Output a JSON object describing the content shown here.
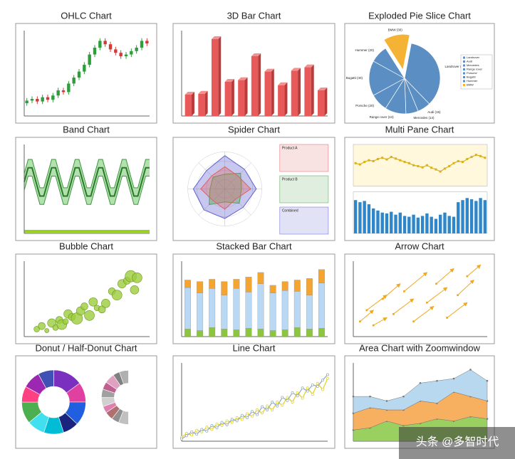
{
  "chart_data": [
    {
      "type": "ohlc",
      "title": "OHLC Chart",
      "up_color": "#2e9e3a",
      "down_color": "#d23a3a",
      "ylim": [
        0,
        100
      ],
      "open": [
        15,
        18,
        20,
        17,
        22,
        19,
        24,
        30,
        28,
        38,
        45,
        52,
        60,
        72,
        80,
        88,
        84,
        78,
        74,
        70,
        72,
        76,
        80,
        88
      ],
      "high": [
        21,
        23,
        23,
        25,
        25,
        27,
        33,
        33,
        41,
        48,
        55,
        63,
        75,
        83,
        91,
        91,
        87,
        81,
        77,
        75,
        79,
        83,
        91,
        91
      ],
      "low": [
        12,
        15,
        14,
        14,
        16,
        16,
        21,
        25,
        25,
        35,
        42,
        49,
        57,
        69,
        77,
        81,
        75,
        71,
        67,
        67,
        69,
        73,
        77,
        82
      ],
      "close": [
        18,
        20,
        17,
        22,
        19,
        24,
        30,
        28,
        38,
        45,
        52,
        60,
        72,
        80,
        88,
        84,
        78,
        74,
        70,
        72,
        76,
        80,
        88,
        85
      ]
    },
    {
      "type": "bar3d",
      "title": "3D Bar Chart",
      "color": "#e8595a",
      "ylim": [
        0,
        100
      ],
      "values": [
        25,
        26,
        90,
        40,
        42,
        70,
        52,
        36,
        53,
        57,
        30
      ]
    },
    {
      "type": "pie",
      "title": "Exploded Pie Slice Chart",
      "explode": 7,
      "color": "#5b8ec2",
      "explode_color": "#f5b335",
      "categories": [
        "Landrover",
        "Audi",
        "Mercedes",
        "Range rover",
        "Porsche",
        "Bugatti",
        "Hummer",
        "BMW"
      ],
      "labels": [
        "Landrover (87)",
        "Audi (15)",
        "Mercedes (14)",
        "Range rover (24)",
        "Porsche (20)",
        "Bugatti (40)",
        "Hummer (20)",
        "BMW (30)"
      ],
      "values": [
        87,
        15,
        14,
        24,
        20,
        40,
        20,
        30
      ]
    },
    {
      "type": "band",
      "title": "Band Chart",
      "color": "#3c9a3c",
      "band_color": "#9fd89a",
      "ylim": [
        0,
        100
      ],
      "values": [
        55,
        72,
        72,
        55,
        38,
        38,
        55,
        72,
        72,
        55,
        38,
        38,
        55,
        72,
        72,
        55,
        38,
        38,
        55,
        72,
        72,
        55,
        38,
        38,
        55,
        72,
        72,
        55,
        38,
        38,
        55,
        72,
        72
      ],
      "upper": [
        65,
        82,
        82,
        65,
        48,
        48,
        65,
        82,
        82,
        65,
        48,
        48,
        65,
        82,
        82,
        65,
        48,
        48,
        65,
        82,
        82,
        65,
        48,
        48,
        65,
        82,
        82,
        65,
        48,
        48,
        65,
        82,
        82
      ],
      "lower": [
        45,
        62,
        62,
        45,
        28,
        28,
        45,
        62,
        62,
        45,
        28,
        28,
        45,
        62,
        62,
        45,
        28,
        28,
        45,
        62,
        62,
        45,
        28,
        28,
        45,
        62,
        62,
        45,
        28,
        28,
        45,
        62,
        62
      ]
    },
    {
      "type": "spider",
      "title": "Spider Chart",
      "rlim": [
        0,
        100
      ],
      "series": [
        {
          "name": "Product A",
          "color": "#e06060",
          "values": [
            60,
            50,
            70,
            40,
            55,
            45,
            65,
            50
          ]
        },
        {
          "name": "Product B",
          "color": "#50a050",
          "values": [
            40,
            60,
            45,
            55,
            35,
            60,
            40,
            45
          ]
        },
        {
          "name": "Combined",
          "color": "#6060d0",
          "values": [
            90,
            75,
            85,
            70,
            80,
            80,
            85,
            70
          ]
        }
      ]
    },
    {
      "type": "multipane",
      "title": "Multi Pane Chart",
      "line_color": "#d8b020",
      "bar_color": "#2f86c8",
      "ylim": [
        0,
        100
      ],
      "line_values": [
        55,
        52,
        58,
        62,
        60,
        65,
        68,
        64,
        70,
        66,
        62,
        58,
        55,
        50,
        48,
        45,
        50,
        44,
        40,
        35,
        42,
        48,
        55,
        60,
        58,
        65,
        70,
        75,
        72,
        68
      ],
      "bar_values": [
        80,
        75,
        78,
        70,
        60,
        55,
        50,
        48,
        52,
        45,
        50,
        42,
        40,
        45,
        38,
        42,
        48,
        40,
        35,
        45,
        50,
        42,
        40,
        75,
        80,
        85,
        82,
        78,
        85,
        80
      ]
    },
    {
      "type": "bubble",
      "title": "Bubble Chart",
      "color": "#9ccc3c",
      "xlim": [
        0,
        100
      ],
      "ylim": [
        0,
        100
      ],
      "x": [
        10,
        14,
        18,
        22,
        25,
        28,
        30,
        33,
        35,
        38,
        42,
        45,
        48,
        52,
        55,
        58,
        62,
        65,
        70,
        74,
        78,
        82,
        85,
        88,
        90
      ],
      "values": [
        10,
        14,
        8,
        18,
        12,
        22,
        16,
        20,
        30,
        26,
        24,
        34,
        40,
        28,
        46,
        38,
        36,
        44,
        60,
        55,
        70,
        74,
        80,
        62,
        78
      ],
      "sizes": [
        4,
        5,
        3,
        6,
        4,
        5,
        7,
        4,
        6,
        5,
        8,
        6,
        5,
        7,
        6,
        4,
        5,
        6,
        5,
        7,
        6,
        5,
        8,
        6,
        7
      ]
    },
    {
      "type": "stacked",
      "title": "Stacked Bar Chart",
      "ylim": [
        0,
        100
      ],
      "series": [
        {
          "color": "#8cc63e",
          "values": [
            10,
            8,
            12,
            10,
            9,
            11,
            10,
            8,
            9,
            12,
            10,
            11
          ]
        },
        {
          "color": "#b8d8f4",
          "values": [
            55,
            50,
            52,
            45,
            55,
            48,
            60,
            50,
            52,
            48,
            45,
            60
          ]
        },
        {
          "color": "#f4a531",
          "values": [
            10,
            15,
            12,
            18,
            12,
            20,
            15,
            10,
            12,
            15,
            22,
            18
          ]
        }
      ]
    },
    {
      "type": "arrow",
      "title": "Arrow Chart",
      "color": "#f0a820",
      "xlim": [
        0,
        100
      ],
      "ylim": [
        0,
        100
      ],
      "x": [
        5,
        10,
        15,
        22,
        30,
        38,
        45,
        55,
        62,
        70,
        78,
        85
      ],
      "values": [
        20,
        35,
        15,
        50,
        30,
        60,
        20,
        45,
        70,
        25,
        55,
        80
      ],
      "x_end": [
        15,
        25,
        25,
        35,
        45,
        55,
        60,
        70,
        75,
        85,
        90,
        95
      ],
      "y_end": [
        35,
        55,
        25,
        70,
        50,
        85,
        40,
        65,
        90,
        45,
        75,
        95
      ]
    },
    {
      "type": "donut",
      "title": "Donut / Half-Donut Chart",
      "series": [
        {
          "values": [
            15,
            10,
            12,
            8,
            10,
            9,
            11,
            8,
            9,
            8
          ],
          "colors": [
            "#7b2fbe",
            "#e040a0",
            "#2060e0",
            "#1a237e",
            "#00bcd4",
            "#40e0f0",
            "#4caf50",
            "#ff4081",
            "#9c27b0",
            "#3f51b5"
          ]
        },
        {
          "values": [
            12,
            9,
            10,
            8,
            11,
            10,
            9,
            12,
            8,
            11
          ],
          "colors": [
            "#c0c0c0",
            "#909090",
            "#b07070",
            "#e080b0",
            "#d0d0d0",
            "#a0a0a0",
            "#c06090",
            "#e0a0c0",
            "#808080",
            "#b0b0b0"
          ]
        }
      ]
    },
    {
      "type": "line",
      "title": "Line Chart",
      "ylim": [
        0,
        100
      ],
      "series": [
        {
          "color": "#e0d020",
          "values": [
            5,
            10,
            8,
            14,
            12,
            18,
            15,
            22,
            20,
            26,
            24,
            30,
            28,
            35,
            32,
            40,
            36,
            45,
            40,
            50,
            46,
            56,
            50,
            62,
            55,
            68,
            60,
            74,
            66,
            80
          ]
        },
        {
          "color": "#90a8b8",
          "values": [
            3,
            7,
            12,
            9,
            15,
            13,
            20,
            17,
            24,
            21,
            28,
            26,
            33,
            30,
            38,
            34,
            44,
            40,
            50,
            45,
            56,
            52,
            62,
            58,
            68,
            64,
            72,
            70,
            78,
            85
          ]
        }
      ]
    },
    {
      "type": "area",
      "title": "Area Chart with Zoomwindow",
      "ylim": [
        0,
        70
      ],
      "series": [
        {
          "color": "#9ad060",
          "values": [
            10,
            12,
            18,
            14,
            16,
            20,
            18,
            22,
            20
          ]
        },
        {
          "color": "#f6b060",
          "values": [
            15,
            18,
            10,
            14,
            20,
            14,
            26,
            18,
            16
          ]
        },
        {
          "color": "#b8d8f0",
          "values": [
            15,
            10,
            8,
            12,
            16,
            20,
            12,
            24,
            18
          ]
        }
      ]
    }
  ],
  "watermark": "头条 @多智时代"
}
